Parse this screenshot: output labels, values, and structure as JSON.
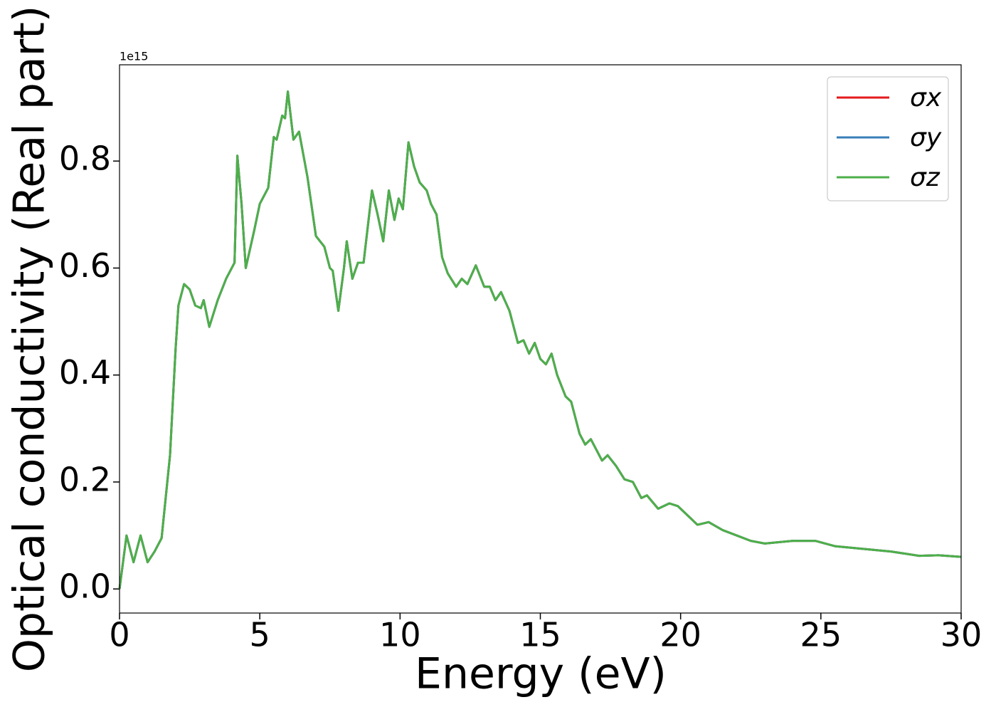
{
  "chart_data": {
    "type": "line",
    "xlabel": "Energy (eV)",
    "ylabel": "Optical conductivity (Real part)",
    "offset_label": "1e15",
    "x": [
      0,
      0.25,
      0.5,
      0.75,
      1.0,
      1.25,
      1.5,
      1.8,
      2.0,
      2.1,
      2.3,
      2.5,
      2.7,
      2.9,
      3.0,
      3.2,
      3.5,
      3.8,
      4.0,
      4.1,
      4.2,
      4.35,
      4.5,
      4.8,
      5.0,
      5.3,
      5.5,
      5.6,
      5.8,
      5.9,
      6.0,
      6.2,
      6.4,
      6.7,
      7.0,
      7.3,
      7.5,
      7.6,
      7.8,
      8.0,
      8.1,
      8.3,
      8.5,
      8.7,
      9.0,
      9.2,
      9.4,
      9.6,
      9.8,
      9.95,
      10.1,
      10.3,
      10.5,
      10.7,
      10.95,
      11.1,
      11.3,
      11.5,
      11.7,
      12.0,
      12.2,
      12.4,
      12.7,
      13.0,
      13.2,
      13.4,
      13.6,
      13.9,
      14.2,
      14.4,
      14.6,
      14.8,
      15.0,
      15.2,
      15.4,
      15.6,
      15.9,
      16.1,
      16.4,
      16.6,
      16.8,
      17.2,
      17.4,
      17.7,
      18.0,
      18.3,
      18.6,
      18.8,
      19.2,
      19.6,
      19.9,
      20.2,
      20.6,
      21.0,
      21.5,
      22.0,
      22.5,
      23.0,
      24.0,
      24.8,
      25.5,
      26.5,
      27.5,
      28.5,
      29.2,
      30
    ],
    "series": [
      {
        "name": "σx",
        "color": "#e41a1c",
        "values": [
          0,
          0.1,
          0.05,
          0.1,
          0.05,
          0.07,
          0.095,
          0.25,
          0.45,
          0.53,
          0.57,
          0.56,
          0.53,
          0.525,
          0.54,
          0.49,
          0.54,
          0.58,
          0.6,
          0.61,
          0.81,
          0.72,
          0.6,
          0.67,
          0.72,
          0.75,
          0.845,
          0.84,
          0.885,
          0.88,
          0.93,
          0.84,
          0.855,
          0.77,
          0.66,
          0.64,
          0.6,
          0.595,
          0.52,
          0.6,
          0.65,
          0.58,
          0.61,
          0.61,
          0.745,
          0.7,
          0.65,
          0.745,
          0.69,
          0.73,
          0.71,
          0.835,
          0.79,
          0.76,
          0.745,
          0.72,
          0.7,
          0.62,
          0.59,
          0.565,
          0.58,
          0.57,
          0.605,
          0.565,
          0.565,
          0.54,
          0.555,
          0.52,
          0.46,
          0.465,
          0.44,
          0.46,
          0.43,
          0.42,
          0.44,
          0.4,
          0.36,
          0.35,
          0.29,
          0.27,
          0.28,
          0.24,
          0.25,
          0.23,
          0.205,
          0.2,
          0.17,
          0.175,
          0.15,
          0.16,
          0.155,
          0.14,
          0.12,
          0.125,
          0.11,
          0.1,
          0.09,
          0.085,
          0.09,
          0.09,
          0.08,
          0.075,
          0.07,
          0.062,
          0.063,
          0.06
        ]
      },
      {
        "name": "σy",
        "color": "#377eb8",
        "values": [
          0,
          0.1,
          0.05,
          0.1,
          0.05,
          0.07,
          0.095,
          0.25,
          0.45,
          0.53,
          0.57,
          0.56,
          0.53,
          0.525,
          0.54,
          0.49,
          0.54,
          0.58,
          0.6,
          0.61,
          0.81,
          0.72,
          0.6,
          0.67,
          0.72,
          0.75,
          0.845,
          0.84,
          0.885,
          0.88,
          0.93,
          0.84,
          0.855,
          0.77,
          0.66,
          0.64,
          0.6,
          0.595,
          0.52,
          0.6,
          0.65,
          0.58,
          0.61,
          0.61,
          0.745,
          0.7,
          0.65,
          0.745,
          0.69,
          0.73,
          0.71,
          0.835,
          0.79,
          0.76,
          0.745,
          0.72,
          0.7,
          0.62,
          0.59,
          0.565,
          0.58,
          0.57,
          0.605,
          0.565,
          0.565,
          0.54,
          0.555,
          0.52,
          0.46,
          0.465,
          0.44,
          0.46,
          0.43,
          0.42,
          0.44,
          0.4,
          0.36,
          0.35,
          0.29,
          0.27,
          0.28,
          0.24,
          0.25,
          0.23,
          0.205,
          0.2,
          0.17,
          0.175,
          0.15,
          0.16,
          0.155,
          0.14,
          0.12,
          0.125,
          0.11,
          0.1,
          0.09,
          0.085,
          0.09,
          0.09,
          0.08,
          0.075,
          0.07,
          0.062,
          0.063,
          0.06
        ]
      },
      {
        "name": "σz",
        "color": "#4daf4a",
        "values": [
          0,
          0.1,
          0.05,
          0.1,
          0.05,
          0.07,
          0.095,
          0.25,
          0.45,
          0.53,
          0.57,
          0.56,
          0.53,
          0.525,
          0.54,
          0.49,
          0.54,
          0.58,
          0.6,
          0.61,
          0.81,
          0.72,
          0.6,
          0.67,
          0.72,
          0.75,
          0.845,
          0.84,
          0.885,
          0.88,
          0.93,
          0.84,
          0.855,
          0.77,
          0.66,
          0.64,
          0.6,
          0.595,
          0.52,
          0.6,
          0.65,
          0.58,
          0.61,
          0.61,
          0.745,
          0.7,
          0.65,
          0.745,
          0.69,
          0.73,
          0.71,
          0.835,
          0.79,
          0.76,
          0.745,
          0.72,
          0.7,
          0.62,
          0.59,
          0.565,
          0.58,
          0.57,
          0.605,
          0.565,
          0.565,
          0.54,
          0.555,
          0.52,
          0.46,
          0.465,
          0.44,
          0.46,
          0.43,
          0.42,
          0.44,
          0.4,
          0.36,
          0.35,
          0.29,
          0.27,
          0.28,
          0.24,
          0.25,
          0.23,
          0.205,
          0.2,
          0.17,
          0.175,
          0.15,
          0.16,
          0.155,
          0.14,
          0.12,
          0.125,
          0.11,
          0.1,
          0.09,
          0.085,
          0.09,
          0.09,
          0.08,
          0.075,
          0.07,
          0.062,
          0.063,
          0.06
        ]
      }
    ],
    "xlim": [
      0,
      30
    ],
    "xticks": [
      0,
      5,
      10,
      15,
      20,
      25,
      30
    ],
    "ylim": [
      -0.045,
      0.98
    ],
    "yticks": [
      {
        "value": 0,
        "label": "0.0"
      },
      0.2,
      0.4,
      0.6,
      0.8
    ],
    "grid": false,
    "legend": "upper right"
  }
}
